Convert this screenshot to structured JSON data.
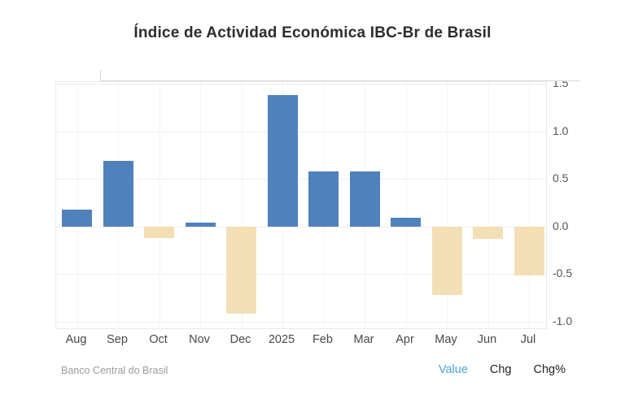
{
  "title": "Índice de Actividad Económica IBC-Br de Brasil",
  "footer": {
    "source": "Banco Central do Brasil",
    "links": [
      {
        "label": "Value",
        "active": true
      },
      {
        "label": "Chg",
        "active": false
      },
      {
        "label": "Chg%",
        "active": false
      }
    ]
  },
  "colors": {
    "positive_bar": "#4f81bd",
    "negative_bar": "#f3dfb6",
    "active_link": "#4aa3d8",
    "inactive_link": "#222222",
    "grid": "#efefef",
    "axis_text": "#555555"
  },
  "chart_data": {
    "type": "bar",
    "title": "Índice de Actividad Económica IBC-Br de Brasil",
    "categories": [
      "Aug",
      "Sep",
      "Oct",
      "Nov",
      "Dec",
      "2025",
      "Feb",
      "Mar",
      "Apr",
      "May",
      "Jun",
      "Jul"
    ],
    "values": [
      0.18,
      0.69,
      -0.12,
      0.04,
      -0.92,
      1.38,
      0.58,
      0.58,
      0.09,
      -0.72,
      -0.13,
      -0.52
    ],
    "series_name": "Value",
    "ytick_labels": [
      "1.5",
      "1.0",
      "0.5",
      "0.0",
      "-0.5",
      "-1.0"
    ],
    "yticks": [
      1.5,
      1.0,
      0.5,
      0.0,
      -0.5,
      -1.0
    ],
    "ylim": [
      -1.09,
      1.52
    ],
    "yaxis_position": "right",
    "xlabel": "",
    "ylabel": "",
    "grid": true,
    "legend": "none",
    "source": "Banco Central do Brasil"
  }
}
